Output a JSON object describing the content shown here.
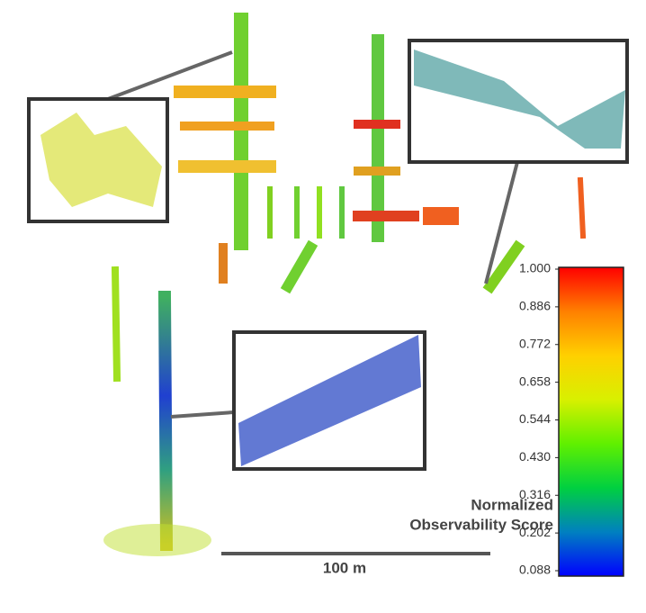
{
  "colorbar": {
    "title_lines": [
      "Normalized",
      "Observability Score"
    ],
    "range": [
      0.088,
      1.0
    ],
    "ticks": [
      {
        "value": 1.0,
        "label": "1.000"
      },
      {
        "value": 0.886,
        "label": "0.886"
      },
      {
        "value": 0.772,
        "label": "0.772"
      },
      {
        "value": 0.658,
        "label": "0.658"
      },
      {
        "value": 0.544,
        "label": "0.544"
      },
      {
        "value": 0.43,
        "label": "0.430"
      },
      {
        "value": 0.316,
        "label": "0.316"
      },
      {
        "value": 0.202,
        "label": "0.202"
      },
      {
        "value": 0.088,
        "label": "0.088"
      }
    ],
    "colormap": [
      "#0000ff",
      "#0080c0",
      "#00d040",
      "#60f000",
      "#d8f000",
      "#ffd000",
      "#ff8000",
      "#ff0000"
    ]
  },
  "scale_bar": {
    "label": "100 m"
  }
}
